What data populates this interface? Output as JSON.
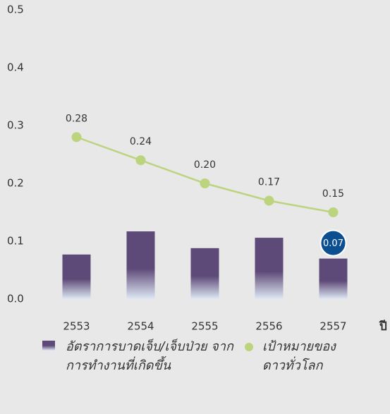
{
  "chart_data": {
    "type": "bar-line",
    "x_label": "ปี",
    "categories": [
      "2553",
      "2554",
      "2555",
      "2556",
      "2557"
    ],
    "series": [
      {
        "name": "อัตราการบาดเจ็บ/เจ็บป่วย จากการทำงานที่เกิดขึ้น",
        "type": "bar",
        "color": "#5e4a78",
        "values": [
          0.077,
          0.117,
          0.088,
          0.106,
          0.07
        ],
        "value_labels": [
          null,
          null,
          null,
          null,
          "0.07"
        ]
      },
      {
        "name": "เป้าหมายของ ดาวทั่วโลก",
        "type": "line",
        "color": "#bcd47e",
        "values": [
          0.28,
          0.24,
          0.2,
          0.17,
          0.15
        ],
        "value_labels": [
          "0.28",
          "0.24",
          "0.20",
          "0.17",
          "0.15"
        ]
      }
    ],
    "ylim": [
      0,
      0.5
    ],
    "yticks": [
      {
        "value": 0,
        "label": "0.0"
      },
      0.1,
      0.2,
      0.3,
      0.4,
      0.5
    ],
    "grid": false
  }
}
